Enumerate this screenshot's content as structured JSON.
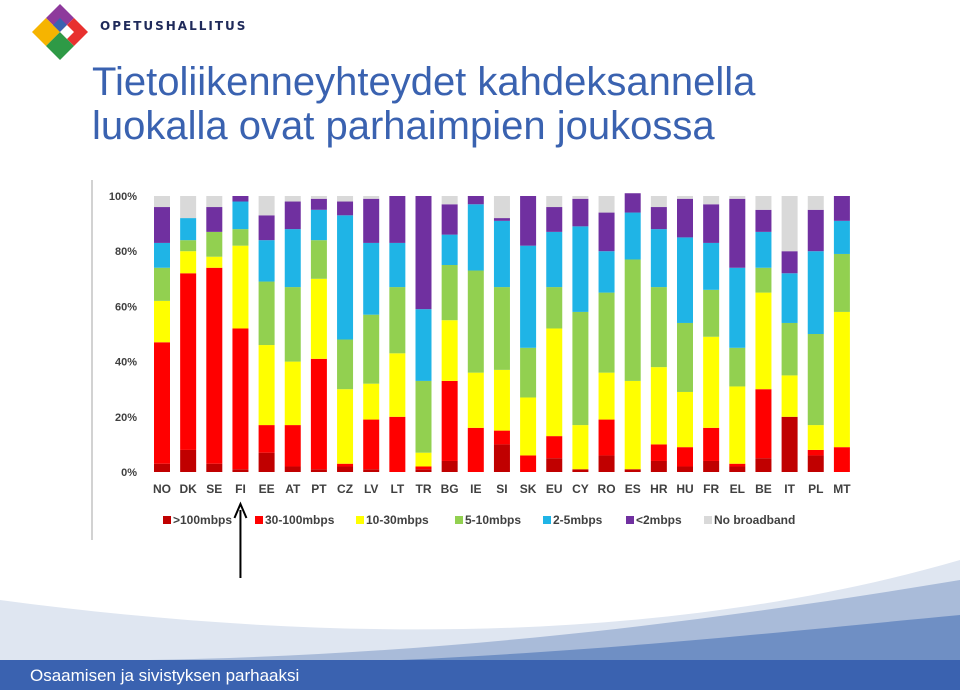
{
  "header": {
    "org_name": "OPETUSHALLITUS",
    "title_line1": "Tietoliikenneyhteydet kahdeksannella",
    "title_line2": "luokalla ovat parhaimpien joukossa"
  },
  "footer": {
    "tagline": "Osaamisen ja sivistyksen parhaaksi"
  },
  "chart_data": {
    "type": "bar",
    "stacked": true,
    "title": "",
    "xlabel": "",
    "ylabel": "",
    "ylim": [
      0,
      100
    ],
    "yticks": [
      "0%",
      "20%",
      "40%",
      "60%",
      "80%",
      "100%"
    ],
    "grid": false,
    "legend_position": "bottom",
    "highlighted_category": "FI",
    "categories": [
      "NO",
      "DK",
      "SE",
      "FI",
      "EE",
      "AT",
      "PT",
      "CZ",
      "LV",
      "LT",
      "TR",
      "BG",
      "IE",
      "SI",
      "SK",
      "EU",
      "CY",
      "RO",
      "ES",
      "HR",
      "HU",
      "FR",
      "EL",
      "BE",
      "IT",
      "PL",
      "MT"
    ],
    "series": [
      {
        "name": ">100mbps",
        "color": "#c00000",
        "values": [
          3,
          8,
          3,
          1,
          7,
          2,
          1,
          2,
          1,
          0,
          1,
          4,
          0,
          10,
          0,
          5,
          1,
          6,
          1,
          4,
          2,
          4,
          2,
          5,
          20,
          6,
          0
        ]
      },
      {
        "name": "30-100mbps",
        "color": "#ff0000",
        "values": [
          44,
          64,
          71,
          51,
          10,
          15,
          40,
          1,
          18,
          20,
          1,
          29,
          16,
          5,
          6,
          8,
          0,
          13,
          0,
          6,
          7,
          12,
          1,
          25,
          0,
          2,
          9
        ]
      },
      {
        "name": "10-30mbps",
        "color": "#ffff00",
        "values": [
          15,
          8,
          4,
          30,
          29,
          23,
          29,
          27,
          13,
          23,
          5,
          22,
          20,
          22,
          21,
          39,
          16,
          17,
          32,
          28,
          20,
          33,
          28,
          35,
          15,
          9,
          49
        ]
      },
      {
        "name": "5-10mbps",
        "color": "#92d050",
        "values": [
          12,
          4,
          9,
          6,
          23,
          27,
          14,
          18,
          25,
          24,
          26,
          20,
          37,
          30,
          18,
          15,
          41,
          29,
          44,
          29,
          25,
          17,
          14,
          9,
          19,
          33,
          21
        ]
      },
      {
        "name": "2-5mbps",
        "color": "#1fb4e6",
        "values": [
          9,
          8,
          0,
          10,
          15,
          21,
          11,
          45,
          26,
          16,
          26,
          11,
          24,
          24,
          37,
          20,
          31,
          15,
          17,
          21,
          31,
          17,
          29,
          13,
          18,
          30,
          12
        ]
      },
      {
        "name": "<2mbps",
        "color": "#7030a0",
        "values": [
          13,
          0,
          9,
          2,
          9,
          10,
          4,
          5,
          16,
          17,
          41,
          11,
          3,
          1,
          18,
          9,
          10,
          14,
          7,
          8,
          14,
          14,
          25,
          8,
          8,
          15,
          9
        ]
      },
      {
        "name": "No broadband",
        "color": "#d9d9d9",
        "values": [
          4,
          8,
          4,
          0,
          7,
          2,
          1,
          2,
          1,
          0,
          0,
          3,
          0,
          8,
          0,
          4,
          1,
          6,
          0,
          4,
          1,
          3,
          1,
          5,
          20,
          5,
          0
        ]
      }
    ]
  }
}
